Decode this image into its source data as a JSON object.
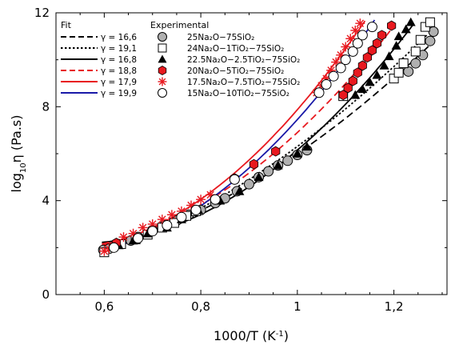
{
  "chart_data": {
    "type": "scatter",
    "xlabel": "1000/T (K",
    "xlabel_sup": "-1",
    "xlabel_end": ")",
    "ylabel": "log",
    "ylabel_sub": "10",
    "ylabel_end": "η (Pa.s)",
    "xlim": [
      0.5,
      1.31
    ],
    "ylim": [
      0,
      12
    ],
    "x_ticks": [
      0.6,
      0.8,
      1.0,
      1.2
    ],
    "x_tick_labels": [
      "0,6",
      "0,8",
      "1",
      "1,2"
    ],
    "y_ticks": [
      0,
      4,
      8,
      12
    ],
    "y_tick_labels": [
      "0",
      "4",
      "8",
      "12"
    ],
    "legend_fit_title": "Fit",
    "legend_exp_title": "Experimental",
    "colors": {
      "black": "#000000",
      "red": "#e8191f",
      "blue": "#1a1aa8",
      "gray": "#b0b0b0"
    },
    "fits": [
      {
        "label": "γ = 16,6",
        "style": "dash",
        "color": "#000000",
        "A": 0.0,
        "B": 1.25,
        "x0": 0.0,
        "x_range": [
          0.595,
          1.285
        ]
      },
      {
        "label": "γ = 19,1",
        "style": "dot",
        "color": "#000000",
        "A": 0.0,
        "B": 1.25,
        "x0": 0.0,
        "x_range": [
          0.595,
          1.27
        ]
      },
      {
        "label": "γ = 16,8",
        "style": "solid",
        "color": "#000000",
        "A": 0.0,
        "B": 1.25,
        "x0": 0.0,
        "x_range": [
          0.595,
          1.24
        ]
      },
      {
        "label": "γ = 18,8",
        "style": "dash",
        "color": "#e8191f",
        "A": 0.0,
        "B": 1.25,
        "x0": 0.0,
        "x_range": [
          0.595,
          1.2
        ]
      },
      {
        "label": "γ = 17,9",
        "style": "solid",
        "color": "#e8191f",
        "A": 0.0,
        "B": 1.25,
        "x0": 0.0,
        "x_range": [
          0.595,
          1.14
        ]
      },
      {
        "label": "γ = 19,9",
        "style": "solid",
        "color": "#1a1aa8",
        "A": 0.0,
        "B": 1.25,
        "x0": 0.0,
        "x_range": [
          0.595,
          1.16
        ]
      }
    ],
    "series": [
      {
        "name": "25Na₂O−75SiO₂",
        "marker": "circle-gray",
        "points": [
          [
            0.598,
            1.9
          ],
          [
            0.61,
            1.95
          ],
          [
            0.655,
            2.3
          ],
          [
            0.67,
            2.45
          ],
          [
            0.7,
            2.75
          ],
          [
            0.725,
            2.95
          ],
          [
            0.75,
            3.15
          ],
          [
            0.775,
            3.4
          ],
          [
            0.8,
            3.6
          ],
          [
            0.83,
            3.9
          ],
          [
            0.85,
            4.1
          ],
          [
            0.875,
            4.4
          ],
          [
            0.9,
            4.7
          ],
          [
            0.92,
            5.0
          ],
          [
            0.94,
            5.25
          ],
          [
            0.96,
            5.5
          ],
          [
            0.98,
            5.7
          ],
          [
            1.0,
            5.95
          ],
          [
            1.02,
            6.15
          ],
          [
            1.23,
            9.5
          ],
          [
            1.245,
            9.85
          ],
          [
            1.26,
            10.2
          ],
          [
            1.275,
            10.8
          ],
          [
            1.282,
            11.2
          ]
        ]
      },
      {
        "name": "24Na₂O−1TiO₂−75SiO₂",
        "marker": "square-open",
        "points": [
          [
            0.6,
            1.8
          ],
          [
            0.635,
            2.15
          ],
          [
            0.665,
            2.35
          ],
          [
            0.69,
            2.55
          ],
          [
            0.72,
            2.85
          ],
          [
            0.745,
            3.05
          ],
          [
            0.77,
            3.35
          ],
          [
            0.79,
            3.55
          ],
          [
            1.095,
            8.45
          ],
          [
            1.2,
            9.2
          ],
          [
            1.21,
            9.45
          ],
          [
            1.22,
            9.85
          ],
          [
            1.245,
            10.35
          ],
          [
            1.255,
            10.85
          ],
          [
            1.265,
            11.4
          ],
          [
            1.275,
            11.6
          ]
        ]
      },
      {
        "name": "22.5Na₂O−2.5TiO₂−75SiO₂",
        "marker": "triangle-black",
        "points": [
          [
            0.63,
            2.1
          ],
          [
            0.66,
            2.3
          ],
          [
            0.69,
            2.6
          ],
          [
            0.73,
            2.85
          ],
          [
            0.76,
            3.2
          ],
          [
            0.795,
            3.6
          ],
          [
            0.84,
            4.0
          ],
          [
            0.88,
            4.4
          ],
          [
            0.92,
            5.0
          ],
          [
            0.96,
            5.5
          ],
          [
            1.0,
            6.0
          ],
          [
            1.02,
            6.3
          ],
          [
            1.12,
            8.5
          ],
          [
            1.135,
            8.75
          ],
          [
            1.15,
            9.05
          ],
          [
            1.165,
            9.35
          ],
          [
            1.18,
            9.75
          ],
          [
            1.19,
            10.15
          ],
          [
            1.205,
            10.6
          ],
          [
            1.21,
            11.0
          ],
          [
            1.225,
            11.3
          ],
          [
            1.235,
            11.6
          ]
        ]
      },
      {
        "name": "20Na₂O−5TiO₂−75SiO₂",
        "marker": "hex-red",
        "points": [
          [
            0.625,
            2.2
          ],
          [
            0.87,
            4.95
          ],
          [
            0.91,
            5.55
          ],
          [
            0.955,
            6.1
          ],
          [
            1.095,
            8.5
          ],
          [
            1.105,
            8.8
          ],
          [
            1.115,
            9.1
          ],
          [
            1.125,
            9.45
          ],
          [
            1.135,
            9.75
          ],
          [
            1.145,
            10.1
          ],
          [
            1.155,
            10.4
          ],
          [
            1.165,
            10.7
          ],
          [
            1.175,
            11.05
          ],
          [
            1.195,
            11.45
          ]
        ]
      },
      {
        "name": "17.5Na₂O−7.5TiO₂−75SiO₂",
        "marker": "star-red",
        "points": [
          [
            0.6,
            1.85
          ],
          [
            0.61,
            1.95
          ],
          [
            0.64,
            2.45
          ],
          [
            0.66,
            2.6
          ],
          [
            0.68,
            2.85
          ],
          [
            0.7,
            3.0
          ],
          [
            0.72,
            3.2
          ],
          [
            0.74,
            3.4
          ],
          [
            0.76,
            3.55
          ],
          [
            0.78,
            3.8
          ],
          [
            0.8,
            4.05
          ],
          [
            0.82,
            4.25
          ],
          [
            1.04,
            8.6
          ],
          [
            1.05,
            8.9
          ],
          [
            1.06,
            9.2
          ],
          [
            1.07,
            9.55
          ],
          [
            1.08,
            9.9
          ],
          [
            1.09,
            10.2
          ],
          [
            1.1,
            10.55
          ],
          [
            1.11,
            10.9
          ],
          [
            1.12,
            11.25
          ],
          [
            1.13,
            11.55
          ]
        ]
      },
      {
        "name": "15Na₂O−10TiO₂−75SiO₂",
        "marker": "circle-open",
        "points": [
          [
            0.62,
            2.0
          ],
          [
            0.67,
            2.4
          ],
          [
            0.7,
            2.7
          ],
          [
            0.73,
            2.95
          ],
          [
            0.76,
            3.3
          ],
          [
            0.79,
            3.6
          ],
          [
            0.83,
            4.05
          ],
          [
            0.87,
            4.9
          ],
          [
            1.045,
            8.6
          ],
          [
            1.06,
            8.95
          ],
          [
            1.075,
            9.3
          ],
          [
            1.09,
            9.65
          ],
          [
            1.1,
            10.0
          ],
          [
            1.115,
            10.35
          ],
          [
            1.125,
            10.7
          ],
          [
            1.135,
            11.05
          ],
          [
            1.155,
            11.4
          ]
        ]
      }
    ]
  }
}
